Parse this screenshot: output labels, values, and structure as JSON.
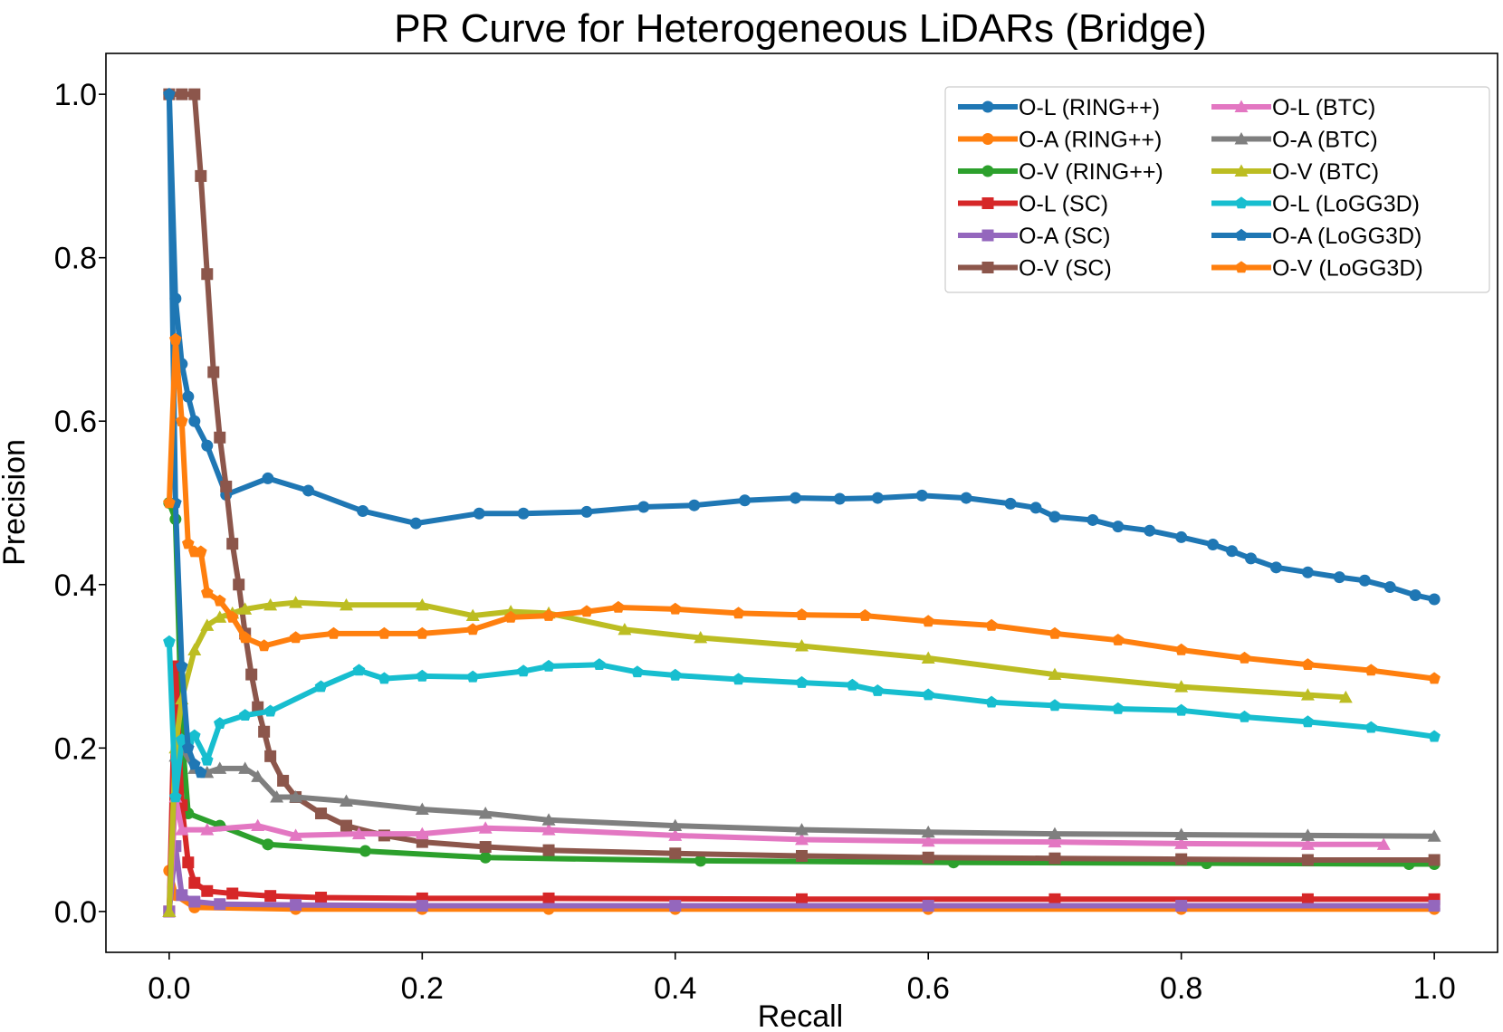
{
  "chart_data": {
    "type": "line",
    "title": "PR Curve for Heterogeneous LiDARs (Bridge)",
    "xlabel": "Recall",
    "ylabel": "Precision",
    "xlim": [
      -0.05,
      1.05
    ],
    "ylim": [
      -0.05,
      1.05
    ],
    "xticks": [
      0.0,
      0.2,
      0.4,
      0.6,
      0.8,
      1.0
    ],
    "xtick_labels": [
      "0.0",
      "0.2",
      "0.4",
      "0.6",
      "0.8",
      "1.0"
    ],
    "yticks": [
      0.0,
      0.2,
      0.4,
      0.6,
      0.8,
      1.0
    ],
    "ytick_labels": [
      "0.0",
      "0.2",
      "0.4",
      "0.6",
      "0.8",
      "1.0"
    ],
    "grid": false,
    "legend_position": "top-right",
    "legend_columns": 2,
    "series": [
      {
        "name": "O-L (RING++)",
        "color": "#1f77b4",
        "marker": "circle",
        "x": [
          0.0,
          0.005,
          0.01,
          0.015,
          0.02,
          0.03,
          0.045,
          0.078,
          0.11,
          0.153,
          0.195,
          0.245,
          0.28,
          0.33,
          0.375,
          0.415,
          0.455,
          0.495,
          0.53,
          0.56,
          0.595,
          0.63,
          0.665,
          0.685,
          0.7,
          0.73,
          0.75,
          0.775,
          0.8,
          0.825,
          0.84,
          0.855,
          0.875,
          0.9,
          0.925,
          0.945,
          0.965,
          0.985,
          1.0
        ],
        "y": [
          1.0,
          0.75,
          0.67,
          0.63,
          0.6,
          0.57,
          0.51,
          0.53,
          0.515,
          0.49,
          0.475,
          0.487,
          0.487,
          0.489,
          0.495,
          0.497,
          0.503,
          0.506,
          0.505,
          0.506,
          0.509,
          0.506,
          0.499,
          0.494,
          0.483,
          0.479,
          0.471,
          0.466,
          0.458,
          0.449,
          0.441,
          0.432,
          0.421,
          0.415,
          0.409,
          0.405,
          0.397,
          0.387,
          0.382
        ]
      },
      {
        "name": "O-A (RING++)",
        "color": "#ff7f0e",
        "marker": "circle",
        "x": [
          0.0,
          0.005,
          0.02,
          0.1,
          0.2,
          0.3,
          0.4,
          0.6,
          0.8,
          1.0
        ],
        "y": [
          0.05,
          0.02,
          0.005,
          0.003,
          0.003,
          0.003,
          0.003,
          0.003,
          0.003,
          0.003
        ]
      },
      {
        "name": "O-V (RING++)",
        "color": "#2ca02c",
        "marker": "circle",
        "x": [
          0.0,
          0.005,
          0.01,
          0.015,
          0.04,
          0.078,
          0.155,
          0.25,
          0.42,
          0.62,
          0.82,
          0.98,
          1.0
        ],
        "y": [
          0.5,
          0.48,
          0.22,
          0.12,
          0.105,
          0.082,
          0.074,
          0.066,
          0.062,
          0.06,
          0.059,
          0.058,
          0.058
        ]
      },
      {
        "name": "O-L (SC)",
        "color": "#d62728",
        "marker": "square",
        "x": [
          0.0,
          0.005,
          0.01,
          0.015,
          0.02,
          0.03,
          0.05,
          0.08,
          0.12,
          0.2,
          0.3,
          0.5,
          0.7,
          0.9,
          1.0
        ],
        "y": [
          0.0,
          0.3,
          0.13,
          0.06,
          0.035,
          0.025,
          0.022,
          0.019,
          0.017,
          0.016,
          0.016,
          0.015,
          0.015,
          0.015,
          0.015
        ]
      },
      {
        "name": "O-A (SC)",
        "color": "#9467bd",
        "marker": "square",
        "x": [
          0.0,
          0.005,
          0.01,
          0.02,
          0.04,
          0.1,
          0.2,
          0.4,
          0.6,
          0.8,
          1.0
        ],
        "y": [
          0.0,
          0.08,
          0.02,
          0.012,
          0.009,
          0.008,
          0.007,
          0.007,
          0.007,
          0.007,
          0.007
        ]
      },
      {
        "name": "O-V (SC)",
        "color": "#8c564b",
        "marker": "square",
        "x": [
          0.0,
          0.01,
          0.02,
          0.025,
          0.03,
          0.035,
          0.04,
          0.045,
          0.05,
          0.055,
          0.06,
          0.065,
          0.07,
          0.075,
          0.08,
          0.09,
          0.1,
          0.12,
          0.14,
          0.17,
          0.2,
          0.25,
          0.3,
          0.4,
          0.5,
          0.6,
          0.7,
          0.8,
          0.9,
          1.0
        ],
        "y": [
          1.0,
          1.0,
          1.0,
          0.9,
          0.78,
          0.66,
          0.58,
          0.52,
          0.45,
          0.4,
          0.34,
          0.29,
          0.25,
          0.22,
          0.19,
          0.16,
          0.14,
          0.12,
          0.105,
          0.093,
          0.085,
          0.079,
          0.075,
          0.071,
          0.068,
          0.066,
          0.065,
          0.064,
          0.063,
          0.063
        ]
      },
      {
        "name": "O-L (BTC)",
        "color": "#e377c2",
        "marker": "triangle",
        "x": [
          0.0,
          0.005,
          0.01,
          0.03,
          0.07,
          0.1,
          0.15,
          0.2,
          0.25,
          0.3,
          0.4,
          0.5,
          0.6,
          0.7,
          0.8,
          0.9,
          0.96
        ],
        "y": [
          0.0,
          0.14,
          0.1,
          0.1,
          0.105,
          0.093,
          0.095,
          0.095,
          0.102,
          0.1,
          0.093,
          0.088,
          0.086,
          0.085,
          0.083,
          0.082,
          0.082
        ]
      },
      {
        "name": "O-A (BTC)",
        "color": "#7f7f7f",
        "marker": "triangle",
        "x": [
          0.0,
          0.005,
          0.01,
          0.02,
          0.03,
          0.04,
          0.06,
          0.07,
          0.085,
          0.1,
          0.14,
          0.2,
          0.25,
          0.3,
          0.4,
          0.5,
          0.6,
          0.7,
          0.8,
          0.9,
          1.0
        ],
        "y": [
          0.0,
          0.19,
          0.2,
          0.175,
          0.17,
          0.175,
          0.175,
          0.165,
          0.14,
          0.14,
          0.135,
          0.125,
          0.12,
          0.112,
          0.105,
          0.1,
          0.097,
          0.095,
          0.094,
          0.093,
          0.092
        ]
      },
      {
        "name": "O-V (BTC)",
        "color": "#bcbd22",
        "marker": "triangle",
        "x": [
          0.0,
          0.005,
          0.01,
          0.02,
          0.03,
          0.04,
          0.05,
          0.06,
          0.08,
          0.1,
          0.14,
          0.2,
          0.24,
          0.27,
          0.3,
          0.36,
          0.42,
          0.5,
          0.6,
          0.7,
          0.8,
          0.9,
          0.93
        ],
        "y": [
          0.0,
          0.2,
          0.26,
          0.32,
          0.35,
          0.36,
          0.365,
          0.37,
          0.375,
          0.378,
          0.375,
          0.375,
          0.362,
          0.367,
          0.365,
          0.345,
          0.335,
          0.325,
          0.31,
          0.29,
          0.275,
          0.265,
          0.262
        ]
      },
      {
        "name": "O-L (LoGG3D)",
        "color": "#17becf",
        "marker": "pentagon",
        "x": [
          0.0,
          0.005,
          0.01,
          0.015,
          0.02,
          0.03,
          0.04,
          0.06,
          0.08,
          0.12,
          0.15,
          0.17,
          0.2,
          0.24,
          0.28,
          0.3,
          0.34,
          0.37,
          0.4,
          0.45,
          0.5,
          0.54,
          0.56,
          0.6,
          0.65,
          0.7,
          0.75,
          0.8,
          0.85,
          0.9,
          0.95,
          1.0
        ],
        "y": [
          0.33,
          0.14,
          0.21,
          0.205,
          0.215,
          0.185,
          0.23,
          0.24,
          0.245,
          0.275,
          0.295,
          0.285,
          0.288,
          0.287,
          0.294,
          0.3,
          0.302,
          0.293,
          0.289,
          0.284,
          0.28,
          0.277,
          0.27,
          0.265,
          0.256,
          0.252,
          0.248,
          0.246,
          0.238,
          0.232,
          0.225,
          0.214
        ]
      },
      {
        "name": "O-A (LoGG3D)",
        "color": "#1f77b4",
        "marker": "pentagon",
        "x": [
          0.0,
          0.005,
          0.01,
          0.015,
          0.02,
          0.025
        ],
        "y": [
          1.0,
          0.5,
          0.3,
          0.2,
          0.18,
          0.17
        ]
      },
      {
        "name": "O-V (LoGG3D)",
        "color": "#ff7f0e",
        "marker": "pentagon",
        "x": [
          0.0,
          0.005,
          0.01,
          0.015,
          0.02,
          0.025,
          0.03,
          0.04,
          0.05,
          0.06,
          0.075,
          0.1,
          0.13,
          0.17,
          0.2,
          0.24,
          0.27,
          0.3,
          0.33,
          0.355,
          0.4,
          0.45,
          0.5,
          0.55,
          0.6,
          0.65,
          0.7,
          0.75,
          0.8,
          0.85,
          0.9,
          0.95,
          1.0
        ],
        "y": [
          0.5,
          0.7,
          0.6,
          0.45,
          0.44,
          0.44,
          0.39,
          0.38,
          0.36,
          0.335,
          0.325,
          0.335,
          0.34,
          0.34,
          0.34,
          0.345,
          0.36,
          0.362,
          0.367,
          0.372,
          0.37,
          0.365,
          0.363,
          0.362,
          0.355,
          0.35,
          0.34,
          0.332,
          0.32,
          0.31,
          0.302,
          0.295,
          0.285
        ]
      }
    ]
  }
}
